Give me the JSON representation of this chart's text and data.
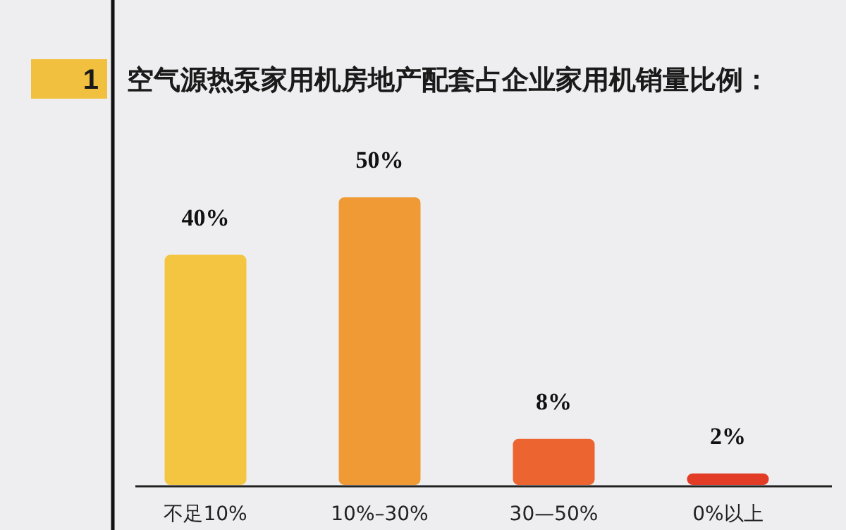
{
  "chart_data": {
    "type": "bar",
    "title": "空气源热泵家用机房地产配套占企业家用机销量比例：",
    "annotations": [
      "1"
    ],
    "categories": [
      "不足10%",
      "10%–30%",
      "30—50%",
      "0%以上"
    ],
    "values": [
      40,
      50,
      8,
      2
    ],
    "value_labels": [
      "40%",
      "50%",
      "8%",
      "2%"
    ],
    "colors": [
      "#f3c541",
      "#ef9a35",
      "#ec6430",
      "#e23c26"
    ]
  }
}
